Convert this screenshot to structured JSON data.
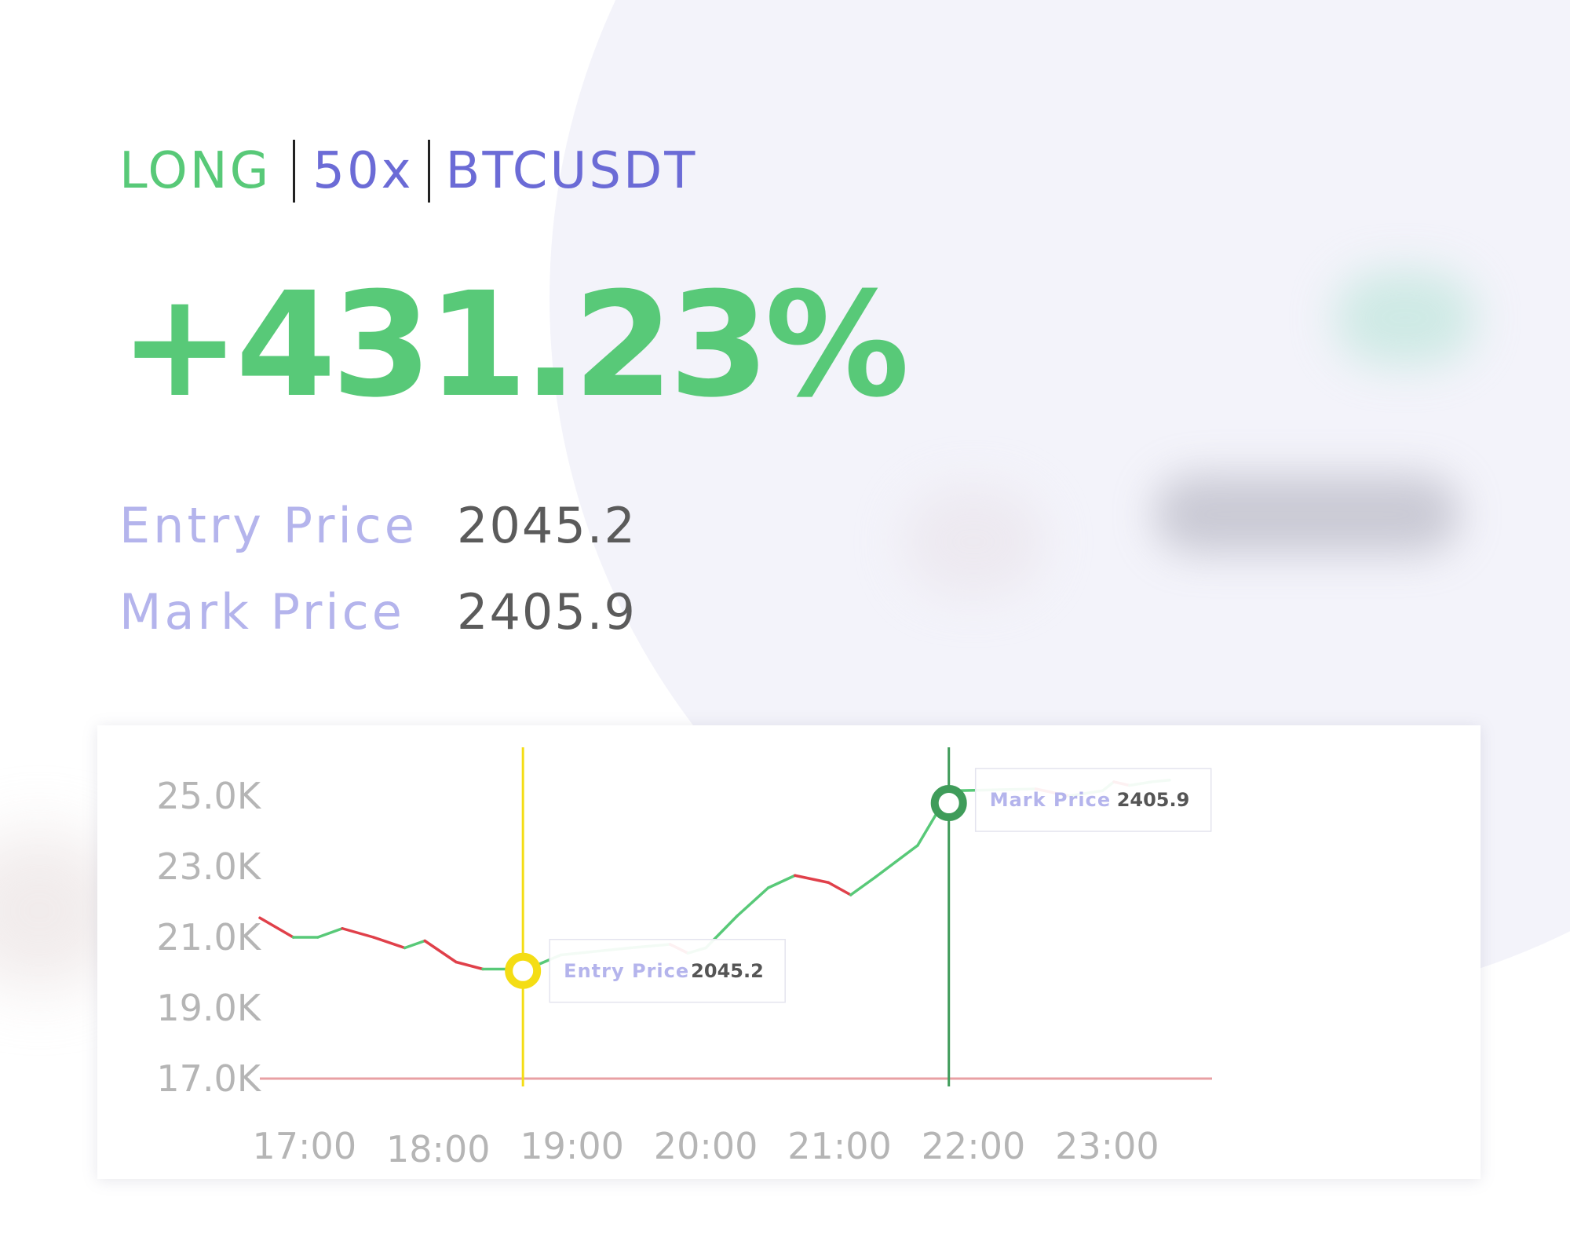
{
  "position": {
    "side": "LONG",
    "leverage": "50x",
    "symbol": "BTCUSDT",
    "pnl_percent": "+431.23%"
  },
  "prices": {
    "entry_label": "Entry Price",
    "entry_value": "2045.2",
    "mark_label": "Mark Price",
    "mark_value": "2405.9"
  },
  "colors": {
    "long_green": "#58c978",
    "accent_purple": "#6b6bd6",
    "label_lavender": "#b4b4ec",
    "up_line": "#58c978",
    "down_line": "#e0404a",
    "entry_marker": "#f4dd14",
    "mark_marker": "#3f9c5a",
    "baseline": "#e8a0a4"
  },
  "chart_data": {
    "type": "line",
    "title": "",
    "xlabel": "",
    "ylabel": "",
    "x_ticks": [
      "17:00",
      "18:00",
      "19:00",
      "20:00",
      "21:00",
      "22:00",
      "23:00"
    ],
    "y_ticks": [
      "25.0K",
      "23.0K",
      "21.0K",
      "19.0K",
      "17.0K"
    ],
    "ylim": [
      17000,
      25000
    ],
    "xlim": [
      "16:40",
      "23:40"
    ],
    "series": [
      {
        "points": [
          {
            "t": "16:40",
            "v": 21550
          },
          {
            "t": "16:55",
            "v": 21000
          },
          {
            "t": "17:06",
            "v": 21000
          },
          {
            "t": "17:17",
            "v": 21250
          },
          {
            "t": "17:31",
            "v": 21000
          },
          {
            "t": "17:45",
            "v": 20700
          },
          {
            "t": "17:54",
            "v": 20900
          },
          {
            "t": "18:08",
            "v": 20300
          },
          {
            "t": "18:20",
            "v": 20100
          },
          {
            "t": "18:40",
            "v": 20100
          },
          {
            "t": "18:55",
            "v": 20500
          },
          {
            "t": "19:26",
            "v": 20700
          },
          {
            "t": "19:44",
            "v": 20800
          },
          {
            "t": "19:52",
            "v": 20550
          },
          {
            "t": "20:00",
            "v": 20700
          },
          {
            "t": "20:14",
            "v": 21600
          },
          {
            "t": "20:28",
            "v": 22400
          },
          {
            "t": "20:40",
            "v": 22750
          },
          {
            "t": "20:55",
            "v": 22550
          },
          {
            "t": "21:05",
            "v": 22200
          },
          {
            "t": "21:16",
            "v": 22700
          },
          {
            "t": "21:35",
            "v": 23600
          },
          {
            "t": "21:43",
            "v": 24450
          },
          {
            "t": "21:52",
            "v": 25150
          },
          {
            "t": "22:28",
            "v": 25200
          },
          {
            "t": "22:43",
            "v": 25000
          },
          {
            "t": "22:58",
            "v": 25150
          },
          {
            "t": "23:03",
            "v": 25400
          },
          {
            "t": "23:10",
            "v": 25300
          },
          {
            "t": "23:20",
            "v": 25400
          },
          {
            "t": "23:28",
            "v": 25450
          }
        ]
      }
    ],
    "baseline_value": 17000,
    "markers": [
      {
        "label": "Entry Price",
        "value": "2045.2",
        "t": "18:38",
        "v": 20050
      },
      {
        "label": "Mark Price",
        "value": "2405.9",
        "t": "21:49",
        "v": 24800
      }
    ]
  }
}
